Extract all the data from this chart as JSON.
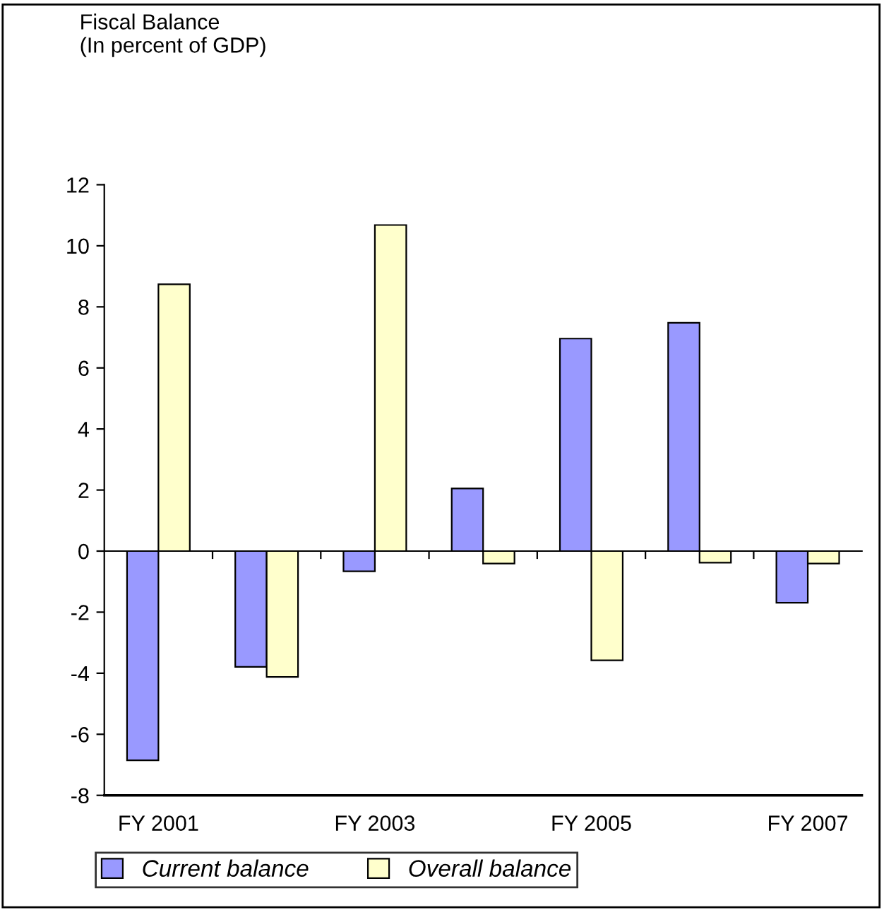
{
  "chart_data": {
    "type": "bar",
    "title": "Fiscal Balance\n(In percent of GDP)",
    "categories": [
      "FY 2001",
      null,
      "FY 2003",
      null,
      "FY 2005",
      null,
      "FY 2007"
    ],
    "series": [
      {
        "name": "Current balance",
        "color": "#9999ff",
        "values": [
          -6.85,
          -3.79,
          -0.66,
          2.05,
          6.96,
          7.48,
          -1.69
        ]
      },
      {
        "name": "Overall balance",
        "color": "#ffffcc",
        "values": [
          8.74,
          -4.12,
          10.68,
          -0.41,
          -3.58,
          -0.38,
          -0.41
        ]
      }
    ],
    "ylim": [
      -8,
      12
    ],
    "yticks": [
      -8,
      -6,
      -4,
      -2,
      0,
      2,
      4,
      6,
      8,
      10,
      12
    ],
    "legend": "bottom"
  }
}
